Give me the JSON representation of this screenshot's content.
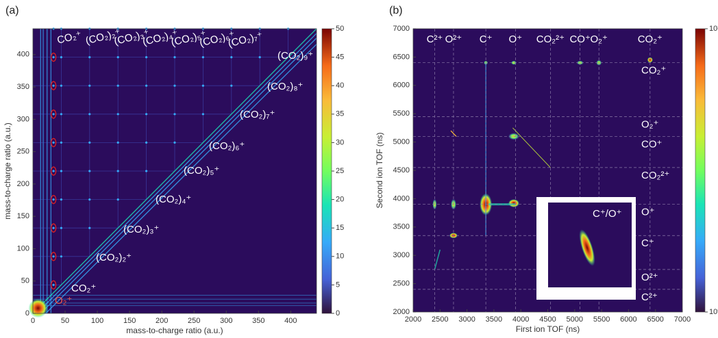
{
  "chart_data": [
    {
      "type": "heatmap",
      "panel": "(a)",
      "xlabel": "mass-to-charge ratio (a.u.)",
      "ylabel": "mass-to-charge ratio (a.u.)",
      "xlim": [
        0,
        440
      ],
      "ylim": [
        0,
        440
      ],
      "xticks": [
        0,
        50,
        100,
        150,
        200,
        250,
        300,
        350,
        400
      ],
      "yticks": [
        0,
        50,
        100,
        150,
        200,
        250,
        300,
        350,
        400
      ],
      "clim": [
        0,
        50
      ],
      "cticks": [
        0,
        5,
        10,
        15,
        20,
        25,
        30,
        35,
        40,
        45,
        50
      ],
      "log_color": false,
      "top_labels": [
        "CO₂⁺",
        "(CO₂)₂⁺",
        "(CO₂)₃⁺",
        "(CO₂)₄⁺",
        "(CO₂)₅⁺",
        "(CO₂)₆⁺",
        "(CO₂)₇⁺"
      ],
      "diagonal_labels": [
        "O₂⁺",
        "CO₂⁺",
        "(CO₂)₂⁺",
        "(CO₂)₃⁺",
        "(CO₂)₄⁺",
        "(CO₂)₅⁺",
        "(CO₂)₆⁺",
        "(CO₂)₇⁺",
        "(CO₂)₈⁺",
        "(CO₂)₉⁺"
      ]
    },
    {
      "type": "heatmap",
      "panel": "(b)",
      "xlabel": "First ion TOF (ns)",
      "ylabel": "Second ion TOF (ns)",
      "xlim": [
        2000,
        7000
      ],
      "ylim": [
        2000,
        7000
      ],
      "xticks": [
        2000,
        2500,
        3000,
        3500,
        4000,
        4500,
        5000,
        5500,
        6000,
        6500,
        7000
      ],
      "yticks": [
        2000,
        2500,
        3000,
        3500,
        4000,
        4500,
        5000,
        5500,
        6000,
        6500,
        7000
      ],
      "clim": [
        1,
        10
      ],
      "cticks": [
        {
          "value": 1,
          "label": "10⁰"
        },
        {
          "value": 10,
          "label": "10¹"
        }
      ],
      "log_color": true,
      "ion_lines": [
        {
          "label": "C²⁺",
          "value": 2400
        },
        {
          "label": "O²⁺",
          "value": 2750
        },
        {
          "label": "C⁺",
          "value": 3350
        },
        {
          "label": "O⁺",
          "value": 3900
        },
        {
          "label": "CO₂²⁺",
          "value": 4550
        },
        {
          "label": "CO⁺",
          "value": 5100
        },
        {
          "label": "O₂⁺",
          "value": 5450
        },
        {
          "label": "CO₂⁺",
          "value": 6400
        }
      ],
      "inset_label": "C⁺/O⁺"
    }
  ]
}
